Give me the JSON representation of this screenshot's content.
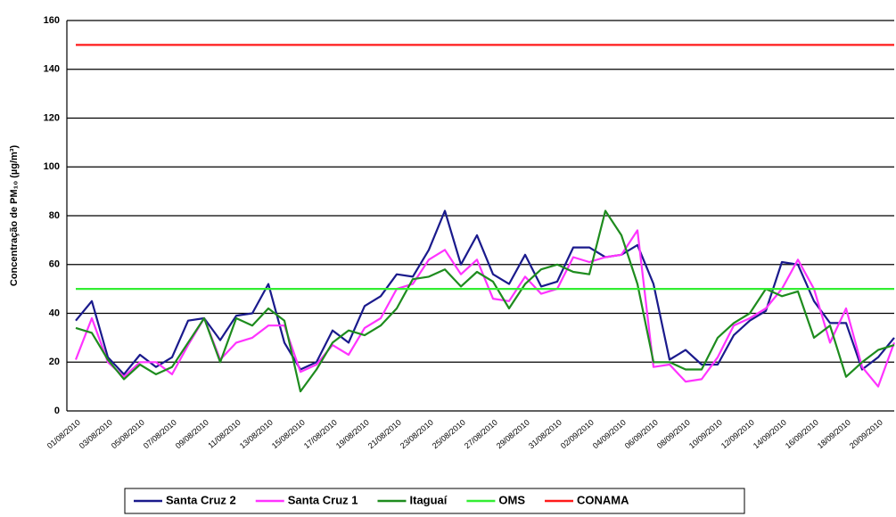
{
  "chart_data": {
    "type": "line",
    "y_label": "Concentração de PM₁₀ (µg/m³)",
    "categories": [
      "01/08/2010",
      null,
      "03/08/2010",
      null,
      "05/08/2010",
      null,
      "07/08/2010",
      null,
      "09/08/2010",
      null,
      "11/08/2010",
      null,
      "13/08/2010",
      null,
      "15/08/2010",
      null,
      "17/08/2010",
      null,
      "19/08/2010",
      null,
      "21/08/2010",
      null,
      "23/08/2010",
      null,
      "25/08/2010",
      null,
      "27/08/2010",
      null,
      "29/08/2010",
      null,
      "31/08/2010",
      null,
      "02/09/2010",
      null,
      "04/09/2010",
      null,
      "06/09/2010",
      null,
      "08/09/2010",
      null,
      "10/09/2010",
      null,
      "12/09/2010",
      null,
      "14/09/2010",
      null,
      "16/09/2010",
      null,
      "18/09/2010",
      null,
      "20/09/2010",
      null
    ],
    "series": [
      {
        "name": "Santa Cruz 2",
        "color": "#1a1a8c",
        "values": [
          37,
          45,
          22,
          15,
          23,
          18,
          22,
          37,
          38,
          29,
          39,
          40,
          52,
          28,
          17,
          20,
          33,
          28,
          43,
          47,
          56,
          55,
          66,
          82,
          60,
          72,
          56,
          52,
          64,
          51,
          53,
          67,
          67,
          63,
          64,
          68,
          52,
          21,
          25,
          19,
          19,
          31,
          37,
          41,
          61,
          60,
          45,
          36,
          36,
          17,
          22,
          30
        ]
      },
      {
        "name": "Santa Cruz 1",
        "color": "#ff33ff",
        "values": [
          21,
          38,
          20,
          14,
          20,
          20,
          15,
          27,
          38,
          21,
          28,
          30,
          35,
          35,
          16,
          19,
          27,
          23,
          34,
          38,
          50,
          52,
          62,
          66,
          56,
          62,
          46,
          45,
          55,
          48,
          50,
          63,
          61,
          63,
          64,
          74,
          18,
          19,
          12,
          13,
          22,
          35,
          38,
          42,
          50,
          62,
          50,
          28,
          42,
          18,
          10,
          28
        ]
      },
      {
        "name": "Itaguaí",
        "color": "#1e8c1e",
        "values": [
          34,
          32,
          21,
          13,
          19,
          15,
          18,
          28,
          38,
          20,
          38,
          35,
          42,
          37,
          8,
          17,
          28,
          33,
          31,
          35,
          42,
          54,
          55,
          58,
          51,
          57,
          53,
          42,
          52,
          58,
          60,
          57,
          56,
          82,
          72,
          52,
          20,
          20,
          17,
          17,
          30,
          36,
          40,
          50,
          47,
          49,
          30,
          35,
          14,
          20,
          25,
          27
        ]
      },
      {
        "name": "OMS",
        "color": "#33ee33",
        "values": [
          50,
          50,
          50,
          50,
          50,
          50,
          50,
          50,
          50,
          50,
          50,
          50,
          50,
          50,
          50,
          50,
          50,
          50,
          50,
          50,
          50,
          50,
          50,
          50,
          50,
          50,
          50,
          50,
          50,
          50,
          50,
          50,
          50,
          50,
          50,
          50,
          50,
          50,
          50,
          50,
          50,
          50,
          50,
          50,
          50,
          50,
          50,
          50,
          50,
          50,
          50,
          50
        ]
      },
      {
        "name": "CONAMA",
        "color": "#ff1a1a",
        "values": [
          150,
          150,
          150,
          150,
          150,
          150,
          150,
          150,
          150,
          150,
          150,
          150,
          150,
          150,
          150,
          150,
          150,
          150,
          150,
          150,
          150,
          150,
          150,
          150,
          150,
          150,
          150,
          150,
          150,
          150,
          150,
          150,
          150,
          150,
          150,
          150,
          150,
          150,
          150,
          150,
          150,
          150,
          150,
          150,
          150,
          150,
          150,
          150,
          150,
          150,
          150,
          150
        ]
      }
    ],
    "ylim": [
      0,
      160
    ],
    "yticks": [
      0,
      20,
      40,
      60,
      80,
      100,
      120,
      140,
      160
    ],
    "grid": true,
    "legend": "bottom"
  }
}
